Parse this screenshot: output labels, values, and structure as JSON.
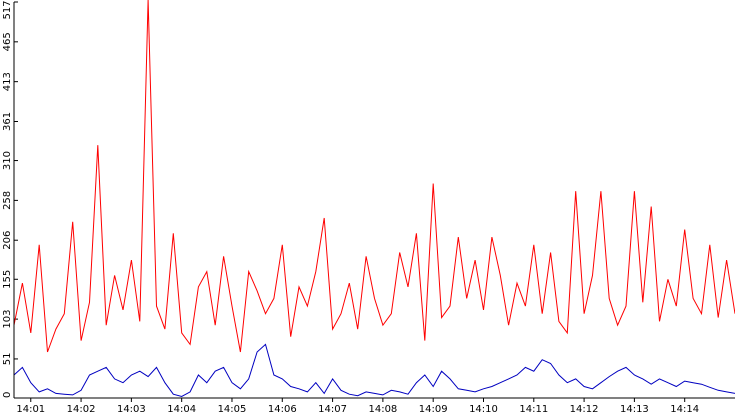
{
  "chart_data": {
    "type": "line",
    "title": "",
    "xlabel": "",
    "ylabel": "",
    "ylim": [
      0,
      517
    ],
    "xlim": [
      "14:00:40",
      "14:15:00"
    ],
    "y_ticks": [
      0,
      51,
      103,
      155,
      206,
      258,
      310,
      361,
      413,
      465,
      517
    ],
    "x_ticks": [
      "14:01",
      "14:02",
      "14:03",
      "14:04",
      "14:05",
      "14:06",
      "14:07",
      "14:08",
      "14:09",
      "14:10",
      "14:11",
      "14:12",
      "14:13",
      "14:14"
    ],
    "grid": false,
    "legend": "none",
    "series": [
      {
        "color": "#ff0000",
        "x": [
          "14:00:40",
          "14:00:50",
          "14:01:00",
          "14:01:10",
          "14:01:20",
          "14:01:30",
          "14:01:40",
          "14:01:50",
          "14:02:00",
          "14:02:10",
          "14:02:20",
          "14:02:30",
          "14:02:40",
          "14:02:50",
          "14:03:00",
          "14:03:10",
          "14:03:20",
          "14:03:30",
          "14:03:40",
          "14:03:50",
          "14:04:00",
          "14:04:10",
          "14:04:20",
          "14:04:30",
          "14:04:40",
          "14:04:50",
          "14:05:00",
          "14:05:10",
          "14:05:20",
          "14:05:30",
          "14:05:40",
          "14:05:50",
          "14:06:00",
          "14:06:10",
          "14:06:20",
          "14:06:30",
          "14:06:40",
          "14:06:50",
          "14:07:00",
          "14:07:10",
          "14:07:20",
          "14:07:30",
          "14:07:40",
          "14:07:50",
          "14:08:00",
          "14:08:10",
          "14:08:20",
          "14:08:30",
          "14:08:40",
          "14:08:50",
          "14:09:00",
          "14:09:10",
          "14:09:20",
          "14:09:30",
          "14:09:40",
          "14:09:50",
          "14:10:00",
          "14:10:10",
          "14:10:20",
          "14:10:30",
          "14:10:40",
          "14:10:50",
          "14:11:00",
          "14:11:10",
          "14:11:20",
          "14:11:30",
          "14:11:40",
          "14:11:50",
          "14:12:00",
          "14:12:10",
          "14:12:20",
          "14:12:30",
          "14:12:40",
          "14:12:50",
          "14:13:00",
          "14:13:10",
          "14:13:20",
          "14:13:30",
          "14:13:40",
          "14:13:50",
          "14:14:00",
          "14:14:10",
          "14:14:20",
          "14:14:30",
          "14:14:40",
          "14:14:50",
          "14:15:00"
        ],
        "values": [
          95,
          150,
          85,
          200,
          60,
          90,
          110,
          230,
          75,
          125,
          330,
          95,
          160,
          115,
          180,
          100,
          520,
          120,
          90,
          215,
          85,
          70,
          145,
          165,
          95,
          185,
          120,
          60,
          165,
          140,
          110,
          130,
          200,
          80,
          145,
          120,
          165,
          235,
          90,
          110,
          150,
          90,
          185,
          130,
          95,
          110,
          190,
          145,
          215,
          75,
          280,
          105,
          120,
          210,
          130,
          180,
          115,
          210,
          160,
          95,
          150,
          120,
          200,
          110,
          190,
          100,
          85,
          270,
          110,
          160,
          270,
          130,
          95,
          120,
          270,
          125,
          250,
          100,
          155,
          120,
          220,
          130,
          110,
          200,
          105,
          180,
          110
        ]
      },
      {
        "color": "#0000c0",
        "x": [
          "14:00:40",
          "14:00:50",
          "14:01:00",
          "14:01:10",
          "14:01:20",
          "14:01:30",
          "14:01:40",
          "14:01:50",
          "14:02:00",
          "14:02:10",
          "14:02:20",
          "14:02:30",
          "14:02:40",
          "14:02:50",
          "14:03:00",
          "14:03:10",
          "14:03:20",
          "14:03:30",
          "14:03:40",
          "14:03:50",
          "14:04:00",
          "14:04:10",
          "14:04:20",
          "14:04:30",
          "14:04:40",
          "14:04:50",
          "14:05:00",
          "14:05:10",
          "14:05:20",
          "14:05:30",
          "14:05:40",
          "14:05:50",
          "14:06:00",
          "14:06:10",
          "14:06:20",
          "14:06:30",
          "14:06:40",
          "14:06:50",
          "14:07:00",
          "14:07:10",
          "14:07:20",
          "14:07:30",
          "14:07:40",
          "14:07:50",
          "14:08:00",
          "14:08:10",
          "14:08:20",
          "14:08:30",
          "14:08:40",
          "14:08:50",
          "14:09:00",
          "14:09:10",
          "14:09:20",
          "14:09:30",
          "14:09:40",
          "14:09:50",
          "14:10:00",
          "14:10:10",
          "14:10:20",
          "14:10:30",
          "14:10:40",
          "14:10:50",
          "14:11:00",
          "14:11:10",
          "14:11:20",
          "14:11:30",
          "14:11:40",
          "14:11:50",
          "14:12:00",
          "14:12:10",
          "14:12:20",
          "14:12:30",
          "14:12:40",
          "14:12:50",
          "14:13:00",
          "14:13:10",
          "14:13:20",
          "14:13:30",
          "14:13:40",
          "14:13:50",
          "14:14:00",
          "14:14:10",
          "14:14:20",
          "14:14:30",
          "14:14:40",
          "14:14:50",
          "14:15:00"
        ],
        "values": [
          30,
          40,
          20,
          8,
          12,
          6,
          5,
          4,
          10,
          30,
          35,
          40,
          25,
          20,
          30,
          35,
          28,
          40,
          20,
          5,
          2,
          8,
          30,
          20,
          35,
          40,
          20,
          12,
          25,
          60,
          70,
          30,
          25,
          15,
          12,
          8,
          20,
          6,
          25,
          10,
          5,
          3,
          8,
          6,
          4,
          10,
          8,
          5,
          20,
          30,
          15,
          35,
          25,
          12,
          10,
          8,
          12,
          15,
          20,
          25,
          30,
          40,
          35,
          50,
          45,
          30,
          20,
          25,
          15,
          12,
          20,
          28,
          35,
          40,
          30,
          25,
          18,
          25,
          20,
          15,
          22,
          20,
          18,
          14,
          10,
          8,
          6
        ]
      }
    ]
  }
}
